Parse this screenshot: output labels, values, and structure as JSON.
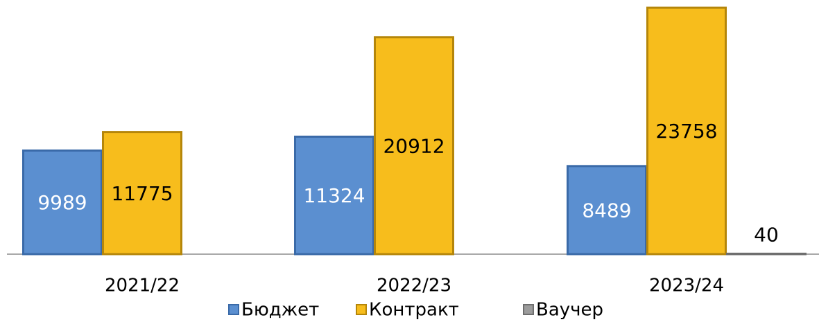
{
  "chart_data": {
    "type": "bar",
    "categories": [
      "2021/22",
      "2022/23",
      "2023/24"
    ],
    "series": [
      {
        "name": "Бюджет",
        "color": "#5b8fd0",
        "values": [
          9989,
          11324,
          8489
        ]
      },
      {
        "name": "Контракт",
        "color": "#f7bd1c",
        "values": [
          11775,
          20912,
          23758
        ]
      },
      {
        "name": "Ваучер",
        "color": "#9c9c9c",
        "values": [
          null,
          null,
          40
        ]
      }
    ],
    "ylim": [
      0,
      24500
    ]
  }
}
